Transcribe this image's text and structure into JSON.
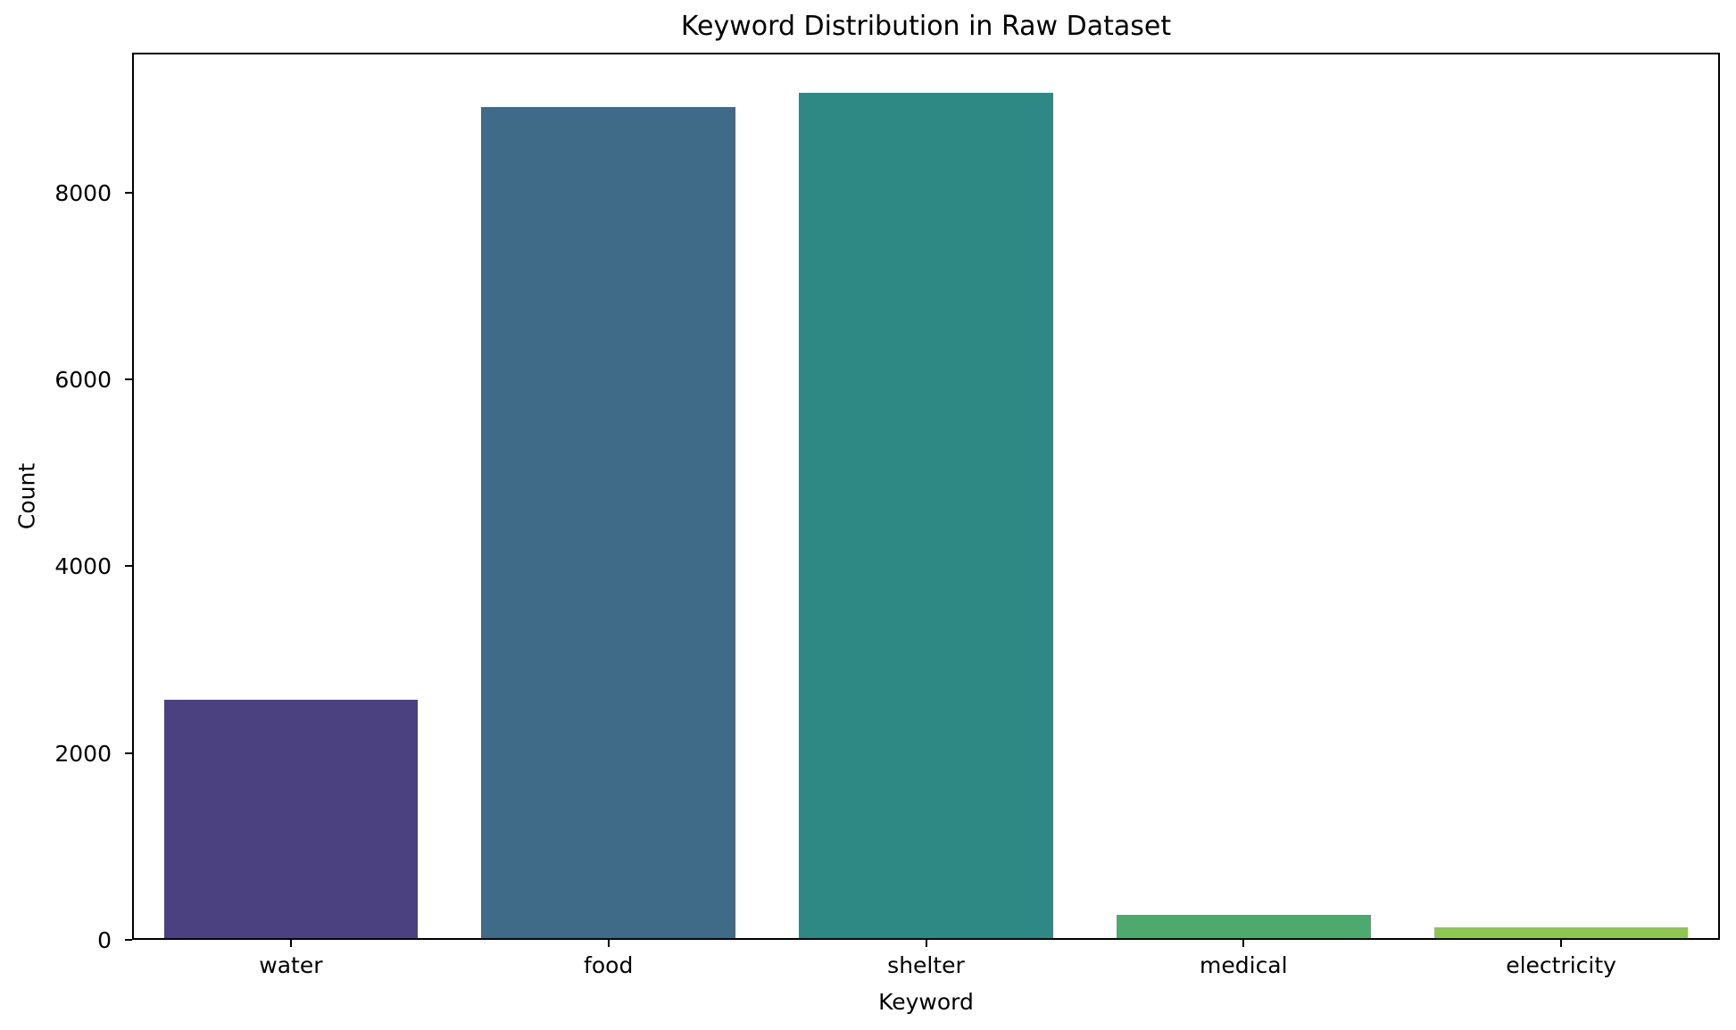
{
  "chart_data": {
    "type": "bar",
    "title": "Keyword Distribution in Raw Dataset",
    "xlabel": "Keyword",
    "ylabel": "Count",
    "categories": [
      "water",
      "food",
      "shelter",
      "medical",
      "electricity"
    ],
    "values": [
      2550,
      8900,
      9050,
      250,
      115
    ],
    "bar_colors": [
      "#4b4181",
      "#3f6b88",
      "#2e8883",
      "#4caa6e",
      "#8dc74f"
    ],
    "ylim": [
      0,
      9500
    ],
    "yticks": [
      0,
      2000,
      4000,
      6000,
      8000
    ],
    "grid": false,
    "legend": false,
    "background_color": "#ffffff",
    "spine_color": "#000000",
    "text_color": "#000000"
  }
}
